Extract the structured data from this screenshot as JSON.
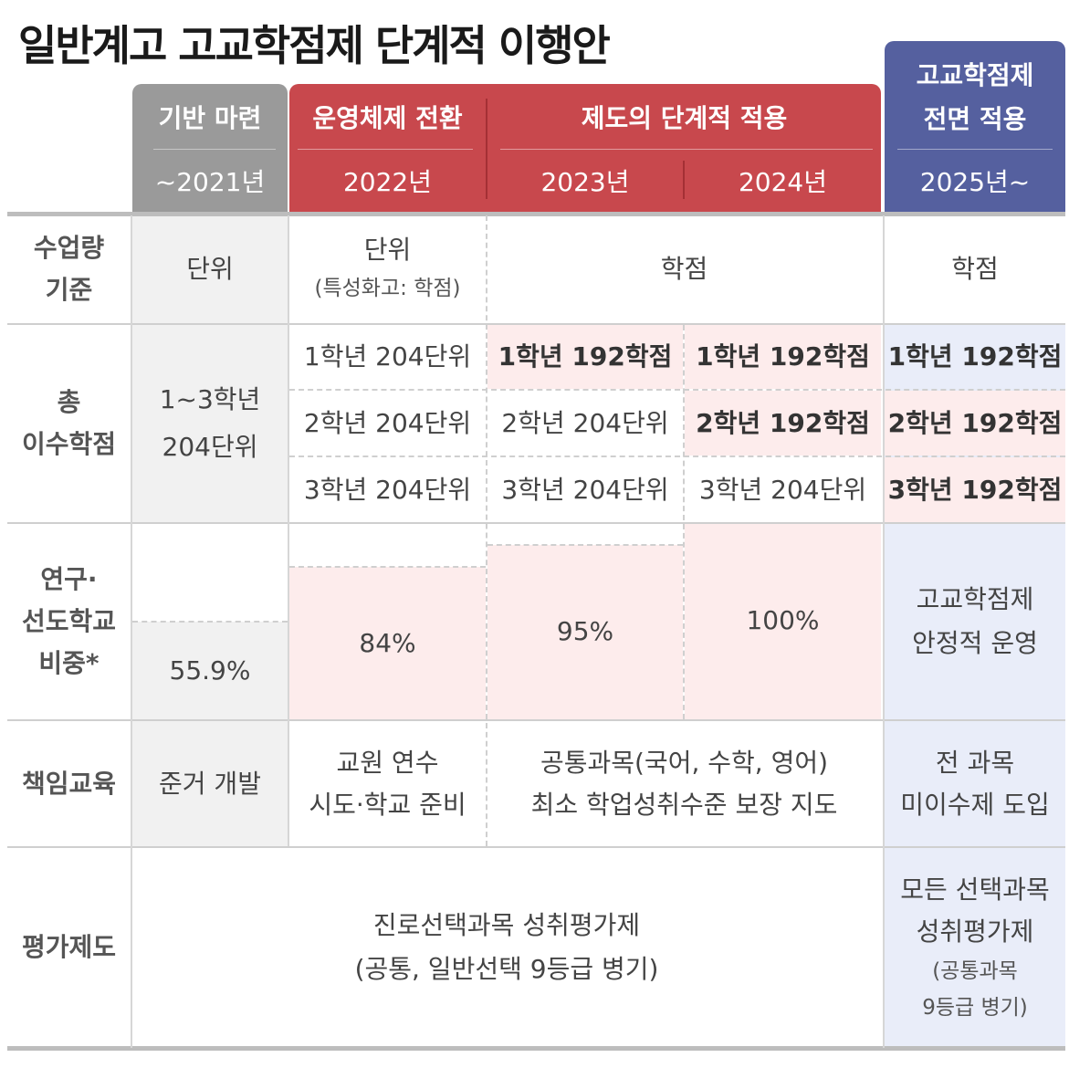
{
  "title": "일반계고 고교학점제 단계적 이행안",
  "header": {
    "foundation": {
      "label": "기반 마련",
      "year": "~2021년"
    },
    "transition": {
      "label": "운영체제 전환",
      "year": "2022년"
    },
    "phased": {
      "label": "제도의 단계적 적용",
      "year_2023": "2023년",
      "year_2024": "2024년"
    },
    "full": {
      "label_line1": "고교학점제",
      "label_line2": "전면 적용",
      "year": "2025년~"
    }
  },
  "rows": {
    "basis": {
      "label_line1": "수업량",
      "label_line2": "기준",
      "c2021": "단위",
      "c2022_line1": "단위",
      "c2022_line2": "(특성화고: 학점)",
      "c2023_2024": "학점",
      "c2025": "학점"
    },
    "credits": {
      "label_line1": "총",
      "label_line2": "이수학점",
      "c2021_line1": "1~3학년",
      "c2021_line2": "204단위",
      "c2022": [
        "1학년 204단위",
        "2학년 204단위",
        "3학년 204단위"
      ],
      "c2023": [
        "1학년 192학점",
        "2학년 204단위",
        "3학년 204단위"
      ],
      "c2024": [
        "1학년 192학점",
        "2학년 192학점",
        "3학년 204단위"
      ],
      "c2025": [
        "1학년 192학점",
        "2학년 192학점",
        "3학년 192학점"
      ]
    },
    "ratio": {
      "label_line1": "연구·",
      "label_line2": "선도학교",
      "label_line3": "비중*",
      "c2021": "55.9%",
      "c2022": "84%",
      "c2023": "95%",
      "c2024": "100%",
      "c2025_line1": "고교학점제",
      "c2025_line2": "안정적 운영",
      "bar_levels": {
        "c2021": 55.9,
        "c2022": 84,
        "c2023": 95,
        "c2024": 100
      }
    },
    "responsibility": {
      "label": "책임교육",
      "c2021": "준거 개발",
      "c2022_line1": "교원 연수",
      "c2022_line2": "시도·학교 준비",
      "c2023_2024_line1": "공통과목(국어, 수학, 영어)",
      "c2023_2024_line2": "최소 학업성취수준 보장 지도",
      "c2025_line1": "전 과목",
      "c2025_line2": "미이수제 도입"
    },
    "evaluation": {
      "label": "평가제도",
      "c2021_2024_line1": "진로선택과목 성취평가제",
      "c2021_2024_line2": "(공통, 일반선택 9등급 병기)",
      "c2025_line1": "모든 선택과목",
      "c2025_line2": "성취평가제",
      "c2025_line3": "(공통과목",
      "c2025_line4": "9등급 병기)"
    }
  },
  "colors": {
    "header_gray": "#9a9a9a",
    "header_red": "#c8484d",
    "header_blue": "#55609f",
    "cell_gray": "#f1f1f1",
    "cell_pink": "#fdecec",
    "cell_blue": "#e9edf9"
  }
}
